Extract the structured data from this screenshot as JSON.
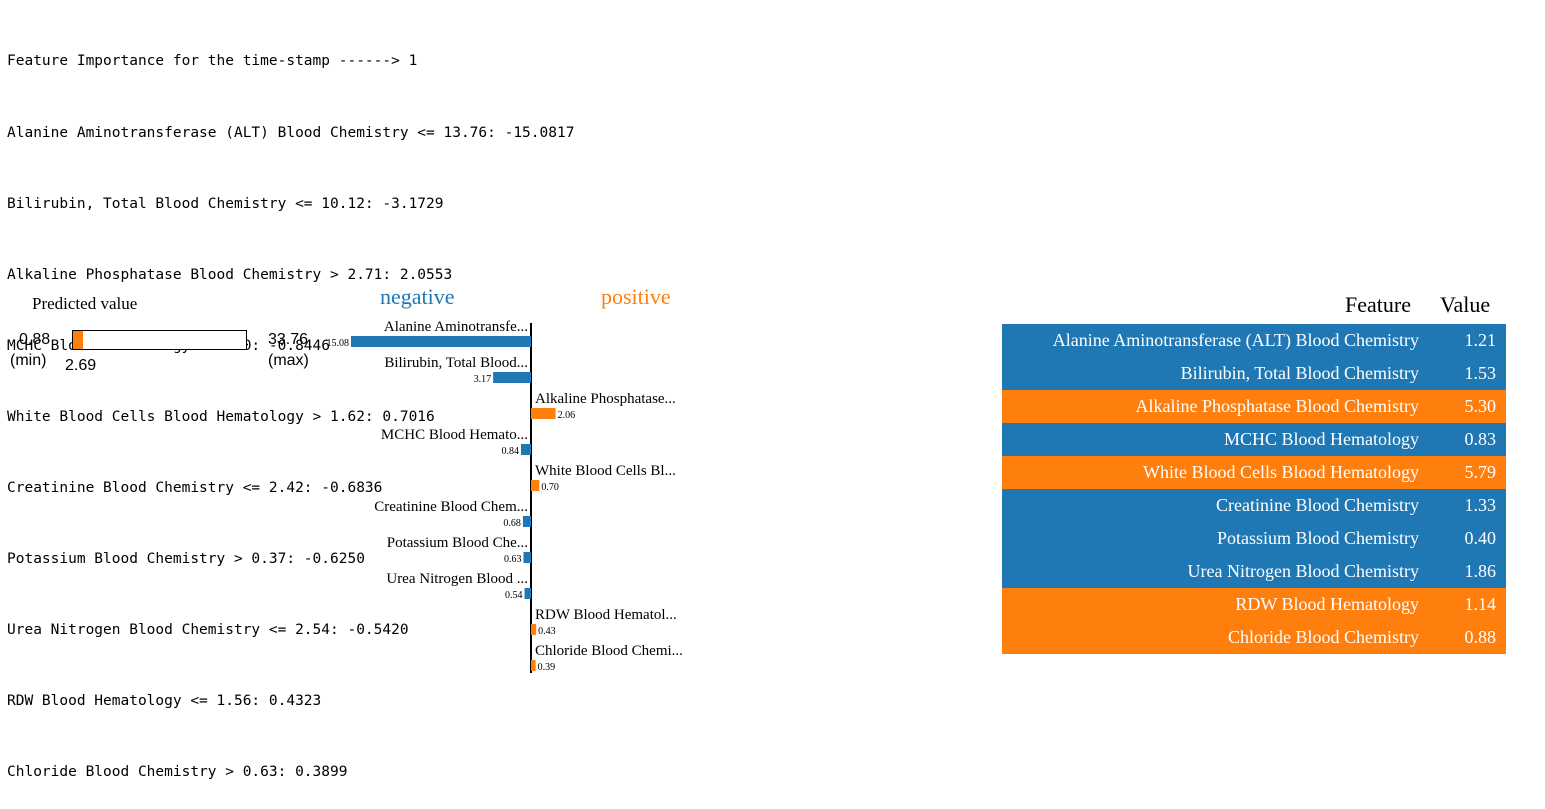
{
  "console": {
    "lines": [
      "Feature Importance for the time-stamp ------> 1",
      "Alanine Aminotransferase (ALT) Blood Chemistry <= 13.76: -15.0817",
      "Bilirubin, Total Blood Chemistry <= 10.12: -3.1729",
      "Alkaline Phosphatase Blood Chemistry > 2.71: 2.0553",
      "MCHC Blood Hematology > 0.80: -0.8446",
      "White Blood Cells Blood Hematology > 1.62: 0.7016",
      "Creatinine Blood Chemistry <= 2.42: -0.6836",
      "Potassium Blood Chemistry > 0.37: -0.6250",
      "Urea Nitrogen Blood Chemistry <= 2.54: -0.5420",
      "RDW Blood Hematology <= 1.56: 0.4323",
      "Chloride Blood Chemistry > 0.63: 0.3899"
    ]
  },
  "prediction": {
    "title": "Predicted value",
    "min": "0.88",
    "min_label": "(min)",
    "max": "33.76",
    "max_label": "(max)",
    "value": "2.69",
    "min_num": 0.88,
    "max_num": 33.76,
    "value_num": 2.69,
    "fill_color": "#ff7f0e"
  },
  "chart_data": {
    "type": "bar",
    "orientation": "horizontal",
    "negative_label": "negative",
    "positive_label": "positive",
    "negative_color": "#1f77b4",
    "positive_color": "#ff7f0e",
    "bars": [
      {
        "label": "Alanine Aminotransfe...",
        "value": -15.08,
        "value_label": "15.08"
      },
      {
        "label": "Bilirubin, Total Blood...",
        "value": -3.17,
        "value_label": "3.17"
      },
      {
        "label": "Alkaline Phosphatase...",
        "value": 2.06,
        "value_label": "2.06"
      },
      {
        "label": "MCHC Blood Hemato...",
        "value": -0.84,
        "value_label": "0.84"
      },
      {
        "label": "White Blood Cells Bl...",
        "value": 0.7,
        "value_label": "0.70"
      },
      {
        "label": "Creatinine Blood Chem...",
        "value": -0.68,
        "value_label": "0.68"
      },
      {
        "label": "Potassium Blood Che...",
        "value": -0.63,
        "value_label": "0.63"
      },
      {
        "label": "Urea Nitrogen Blood ...",
        "value": -0.54,
        "value_label": "0.54"
      },
      {
        "label": "RDW Blood Hematol...",
        "value": 0.43,
        "value_label": "0.43"
      },
      {
        "label": "Chloride Blood Chemi...",
        "value": 0.39,
        "value_label": "0.39"
      }
    ]
  },
  "table": {
    "header_feature": "Feature",
    "header_value": "Value",
    "rows": [
      {
        "feature": "Alanine Aminotransferase (ALT) Blood Chemistry",
        "value": "1.21",
        "color": "#1f77b4"
      },
      {
        "feature": "Bilirubin, Total Blood Chemistry",
        "value": "1.53",
        "color": "#1f77b4"
      },
      {
        "feature": "Alkaline Phosphatase Blood Chemistry",
        "value": "5.30",
        "color": "#ff7f0e"
      },
      {
        "feature": "MCHC Blood Hematology",
        "value": "0.83",
        "color": "#1f77b4"
      },
      {
        "feature": "White Blood Cells Blood Hematology",
        "value": "5.79",
        "color": "#ff7f0e"
      },
      {
        "feature": "Creatinine Blood Chemistry",
        "value": "1.33",
        "color": "#1f77b4"
      },
      {
        "feature": "Potassium Blood Chemistry",
        "value": "0.40",
        "color": "#1f77b4"
      },
      {
        "feature": "Urea Nitrogen Blood Chemistry",
        "value": "1.86",
        "color": "#1f77b4"
      },
      {
        "feature": "RDW Blood Hematology",
        "value": "1.14",
        "color": "#ff7f0e"
      },
      {
        "feature": "Chloride Blood Chemistry",
        "value": "0.88",
        "color": "#ff7f0e"
      }
    ]
  }
}
